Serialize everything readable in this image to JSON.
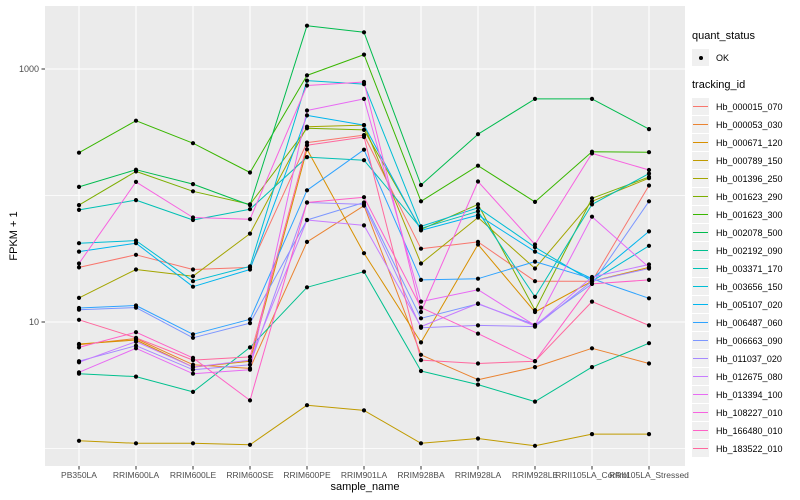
{
  "legend": {
    "quant_status": {
      "title": "quant_status",
      "items": [
        {
          "label": "OK",
          "marker": "filled-point",
          "color": "#000000"
        }
      ]
    },
    "tracking_id": {
      "title": "tracking_id"
    }
  },
  "chart_data": {
    "type": "line",
    "title": "",
    "xlabel": "sample_name",
    "ylabel": "FPKM + 1",
    "x_scale": "categorical",
    "y_scale": "log10",
    "ylim": [
      0.73,
      3160
    ],
    "y_ticks": [
      10,
      1000
    ],
    "y_tick_labels": [
      "10",
      "1000"
    ],
    "y_minor_gridlines": [
      1,
      100
    ],
    "grid": true,
    "legend_position": "right",
    "marker": {
      "shape": "filled-circle",
      "color": "#000000",
      "legend_label": "OK"
    },
    "theme": {
      "panel_bg": "#EBEBEB",
      "grid_color": "#FFFFFF",
      "axis_text_color": "#4D4D4D",
      "tick_color": "#333333",
      "legend_key_bg": "#F0F0F0"
    },
    "categories": [
      "PB350LA",
      "RRIM600LA",
      "RRIM600LE",
      "RRIM600SE",
      "RRIM600PE",
      "RRIM901LA",
      "RRIM928BA",
      "RRIM928LA",
      "RRIM928LE",
      "RRII105LA_Control",
      "RRII105LA_Stressed"
    ],
    "series": [
      {
        "name": "Hb_000015_070",
        "color": "#F8766D",
        "values": [
          27,
          34,
          26,
          27,
          262,
          300,
          38,
          43,
          21,
          21,
          120
        ]
      },
      {
        "name": "Hb_000053_030",
        "color": "#EA8331",
        "values": [
          6.6,
          7.4,
          4.6,
          4.3,
          43,
          83,
          5.5,
          3.5,
          4.4,
          6.2,
          4.7
        ]
      },
      {
        "name": "Hb_000671_120",
        "color": "#D89000",
        "values": [
          6.7,
          7.2,
          4.4,
          4.9,
          232,
          35,
          6.9,
          41,
          12,
          21,
          27
        ]
      },
      {
        "name": "Hb_000789_150",
        "color": "#C09B00",
        "values": [
          1.15,
          1.1,
          1.1,
          1.07,
          2.2,
          2.0,
          1.1,
          1.2,
          1.05,
          1.3,
          1.3
        ]
      },
      {
        "name": "Hb_001396_250",
        "color": "#A3A500",
        "values": [
          15.5,
          26,
          23,
          50,
          350,
          360,
          29,
          67,
          26.5,
          90,
          137
        ]
      },
      {
        "name": "Hb_001623_290",
        "color": "#7CAE00",
        "values": [
          84,
          155,
          108,
          85,
          340,
          330,
          54,
          85,
          12.4,
          95,
          140
        ]
      },
      {
        "name": "Hb_001623_300",
        "color": "#39B600",
        "values": [
          218,
          390,
          259,
          152,
          890,
          1300,
          90,
          172,
          89,
          222,
          220
        ]
      },
      {
        "name": "Hb_002078_500",
        "color": "#00BB4E",
        "values": [
          117,
          160,
          123,
          84,
          2200,
          1950,
          121,
          305,
          580,
          580,
          335
        ]
      },
      {
        "name": "Hb_002192_090",
        "color": "#00C08E",
        "values": [
          3.9,
          3.7,
          2.8,
          6.3,
          18.8,
          25,
          4.1,
          3.2,
          2.35,
          4.4,
          6.8
        ]
      },
      {
        "name": "Hb_003371_170",
        "color": "#00C0B4",
        "values": [
          77,
          92,
          64,
          78,
          201,
          190,
          55,
          75,
          15.8,
          85,
          149
        ]
      },
      {
        "name": "Hb_003656_150",
        "color": "#00BDD4",
        "values": [
          42,
          44,
          21,
          27.5,
          810,
          760,
          57,
          80,
          39,
          21,
          40
        ]
      },
      {
        "name": "Hb_005107_020",
        "color": "#00B5EE",
        "values": [
          36,
          42,
          19,
          26,
          430,
          360,
          53,
          70,
          36,
          22,
          52
        ]
      },
      {
        "name": "Hb_006487_060",
        "color": "#2FA3FF",
        "values": [
          12.9,
          13.5,
          8,
          10.5,
          110,
          230,
          21.5,
          22,
          30,
          22,
          15.4
        ]
      },
      {
        "name": "Hb_006663_090",
        "color": "#7C96FF",
        "values": [
          12.5,
          13,
          7.5,
          9.8,
          64,
          88,
          10.7,
          13.9,
          9.5,
          20,
          90
        ]
      },
      {
        "name": "Hb_011037_020",
        "color": "#A589FF",
        "values": [
          4.9,
          6.5,
          4.2,
          4.6,
          88,
          85,
          9,
          9.4,
          9.2,
          21,
          26.5
        ]
      },
      {
        "name": "Hb_012675_080",
        "color": "#C77CFF",
        "values": [
          4.8,
          7,
          4.4,
          5,
          64,
          58,
          9.2,
          14,
          9.3,
          22.7,
          28.5
        ]
      },
      {
        "name": "Hb_013394_100",
        "color": "#E76BF3",
        "values": [
          4.0,
          6.2,
          3.9,
          4.2,
          470,
          580,
          14.5,
          18,
          9.4,
          68,
          27
        ]
      },
      {
        "name": "Hb_108227_010",
        "color": "#F763E0",
        "values": [
          29,
          128,
          67,
          65,
          740,
          790,
          12,
          129,
          41,
          215,
          159
        ]
      },
      {
        "name": "Hb_166480_010",
        "color": "#FF61C7",
        "values": [
          6.3,
          8.3,
          5.2,
          2.4,
          88,
          97,
          13,
          8.1,
          4.9,
          20,
          21.5
        ]
      },
      {
        "name": "Hb_183522_010",
        "color": "#FF689E",
        "values": [
          10.4,
          7.5,
          5.0,
          5.3,
          250,
          290,
          5.0,
          4.7,
          4.9,
          14.5,
          9.4
        ]
      }
    ]
  }
}
